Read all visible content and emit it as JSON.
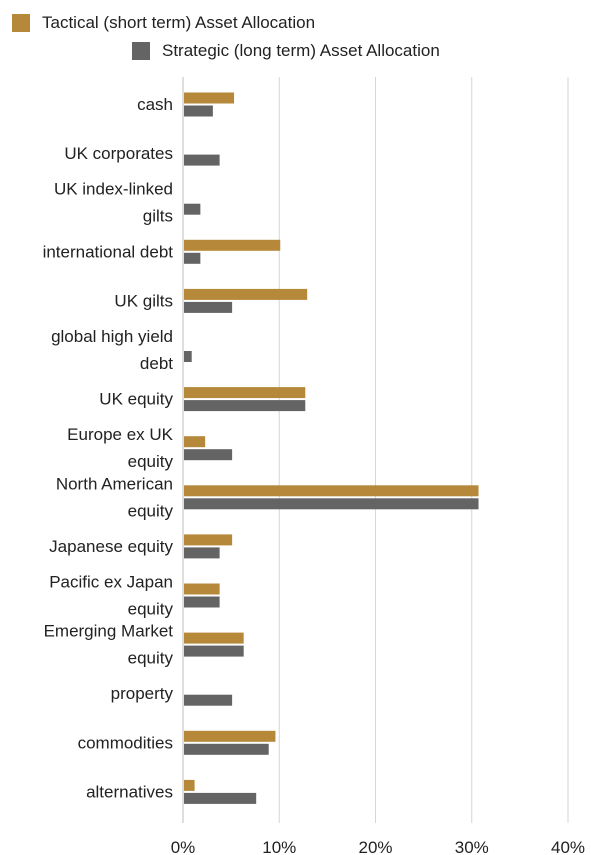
{
  "chart_data": {
    "type": "bar",
    "orientation": "horizontal",
    "categories": [
      "cash",
      "UK corporates",
      "UK index-linked gilts",
      "international debt",
      "UK gilts",
      "global high yield debt",
      "UK equity",
      "Europe ex UK equity",
      "North American equity",
      "Japanese equity",
      "Pacific ex Japan equity",
      "Emerging Market equity",
      "property",
      "commodities",
      "alternatives"
    ],
    "category_lines": [
      [
        "cash"
      ],
      [
        "UK corporates"
      ],
      [
        "UK index-linked",
        "gilts"
      ],
      [
        "international debt"
      ],
      [
        "UK gilts"
      ],
      [
        "global high yield",
        "debt"
      ],
      [
        "UK equity"
      ],
      [
        "Europe ex UK",
        "equity"
      ],
      [
        "North American",
        "equity"
      ],
      [
        "Japanese equity"
      ],
      [
        "Pacific ex Japan",
        "equity"
      ],
      [
        "Emerging Market",
        "equity"
      ],
      [
        "property"
      ],
      [
        "commodities"
      ],
      [
        "alternatives"
      ]
    ],
    "series": [
      {
        "name": "Tactical (short term) Asset Allocation",
        "color": "#b5883a",
        "values": [
          5.2,
          0,
          0,
          10.0,
          12.8,
          0,
          12.6,
          2.2,
          30.6,
          5.0,
          3.7,
          6.2,
          0,
          9.5,
          1.1
        ]
      },
      {
        "name": "Strategic (long term) Asset Allocation",
        "color": "#646464",
        "values": [
          3.0,
          3.7,
          1.7,
          1.7,
          5.0,
          0.8,
          12.6,
          5.0,
          30.6,
          3.7,
          3.7,
          6.2,
          5.0,
          8.8,
          7.5
        ]
      }
    ],
    "xlim": [
      0,
      40
    ],
    "x_ticks": [
      "0%",
      "10%",
      "20%",
      "30%",
      "40%"
    ],
    "grid": "vertical",
    "legend_position": "top-left"
  }
}
